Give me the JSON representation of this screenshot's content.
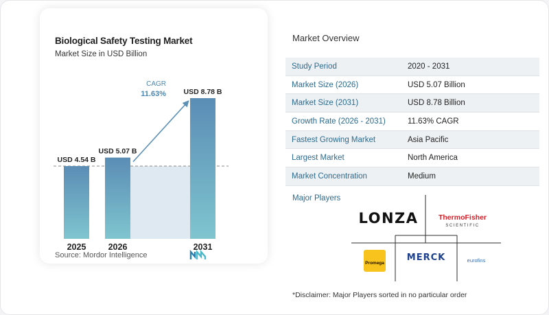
{
  "chart_data": {
    "type": "bar",
    "title": "Biological Safety Testing Market",
    "subtitle": "Market Size in USD Billion",
    "categories": [
      "2025",
      "2026",
      "2031"
    ],
    "values": [
      4.54,
      5.07,
      8.78
    ],
    "data_labels": [
      "USD 4.54 B",
      "USD 5.07 B",
      "USD 8.78 B"
    ],
    "annotation": {
      "label": "CAGR",
      "value": "11.63%"
    },
    "colors": {
      "bar_top": "#5b8db5",
      "bar_bottom": "#7fc5cf",
      "shade": "#dfe9f2",
      "arrow": "#5a8fb6"
    }
  },
  "source": "Source:  Mordor Intelligence",
  "overview": {
    "title": "Market Overview",
    "rows": [
      {
        "key": "Study Period",
        "value": "2020 - 2031"
      },
      {
        "key": "Market Size (2026)",
        "value": "USD 5.07 Billion"
      },
      {
        "key": "Market Size (2031)",
        "value": "USD 8.78 Billion"
      },
      {
        "key": "Growth Rate (2026 - 2031)",
        "value": "11.63% CAGR"
      },
      {
        "key": "Fastest Growing Market",
        "value": "Asia Pacific"
      },
      {
        "key": "Largest Market",
        "value": "North America"
      },
      {
        "key": "Market Concentration",
        "value": "Medium"
      }
    ]
  },
  "players": {
    "title": "Major Players",
    "logos": [
      {
        "name": "LONZA",
        "icon": "lonza-logo"
      },
      {
        "name": "ThermoFisher",
        "sub": "SCIENTIFIC",
        "icon": "thermofisher-logo"
      },
      {
        "name": "Promega",
        "icon": "promega-logo"
      },
      {
        "name": "MERCK",
        "icon": "merck-logo"
      },
      {
        "name": "eurofins",
        "icon": "eurofins-logo"
      }
    ]
  },
  "disclaimer": "*Disclaimer: Major Players sorted in no particular order"
}
